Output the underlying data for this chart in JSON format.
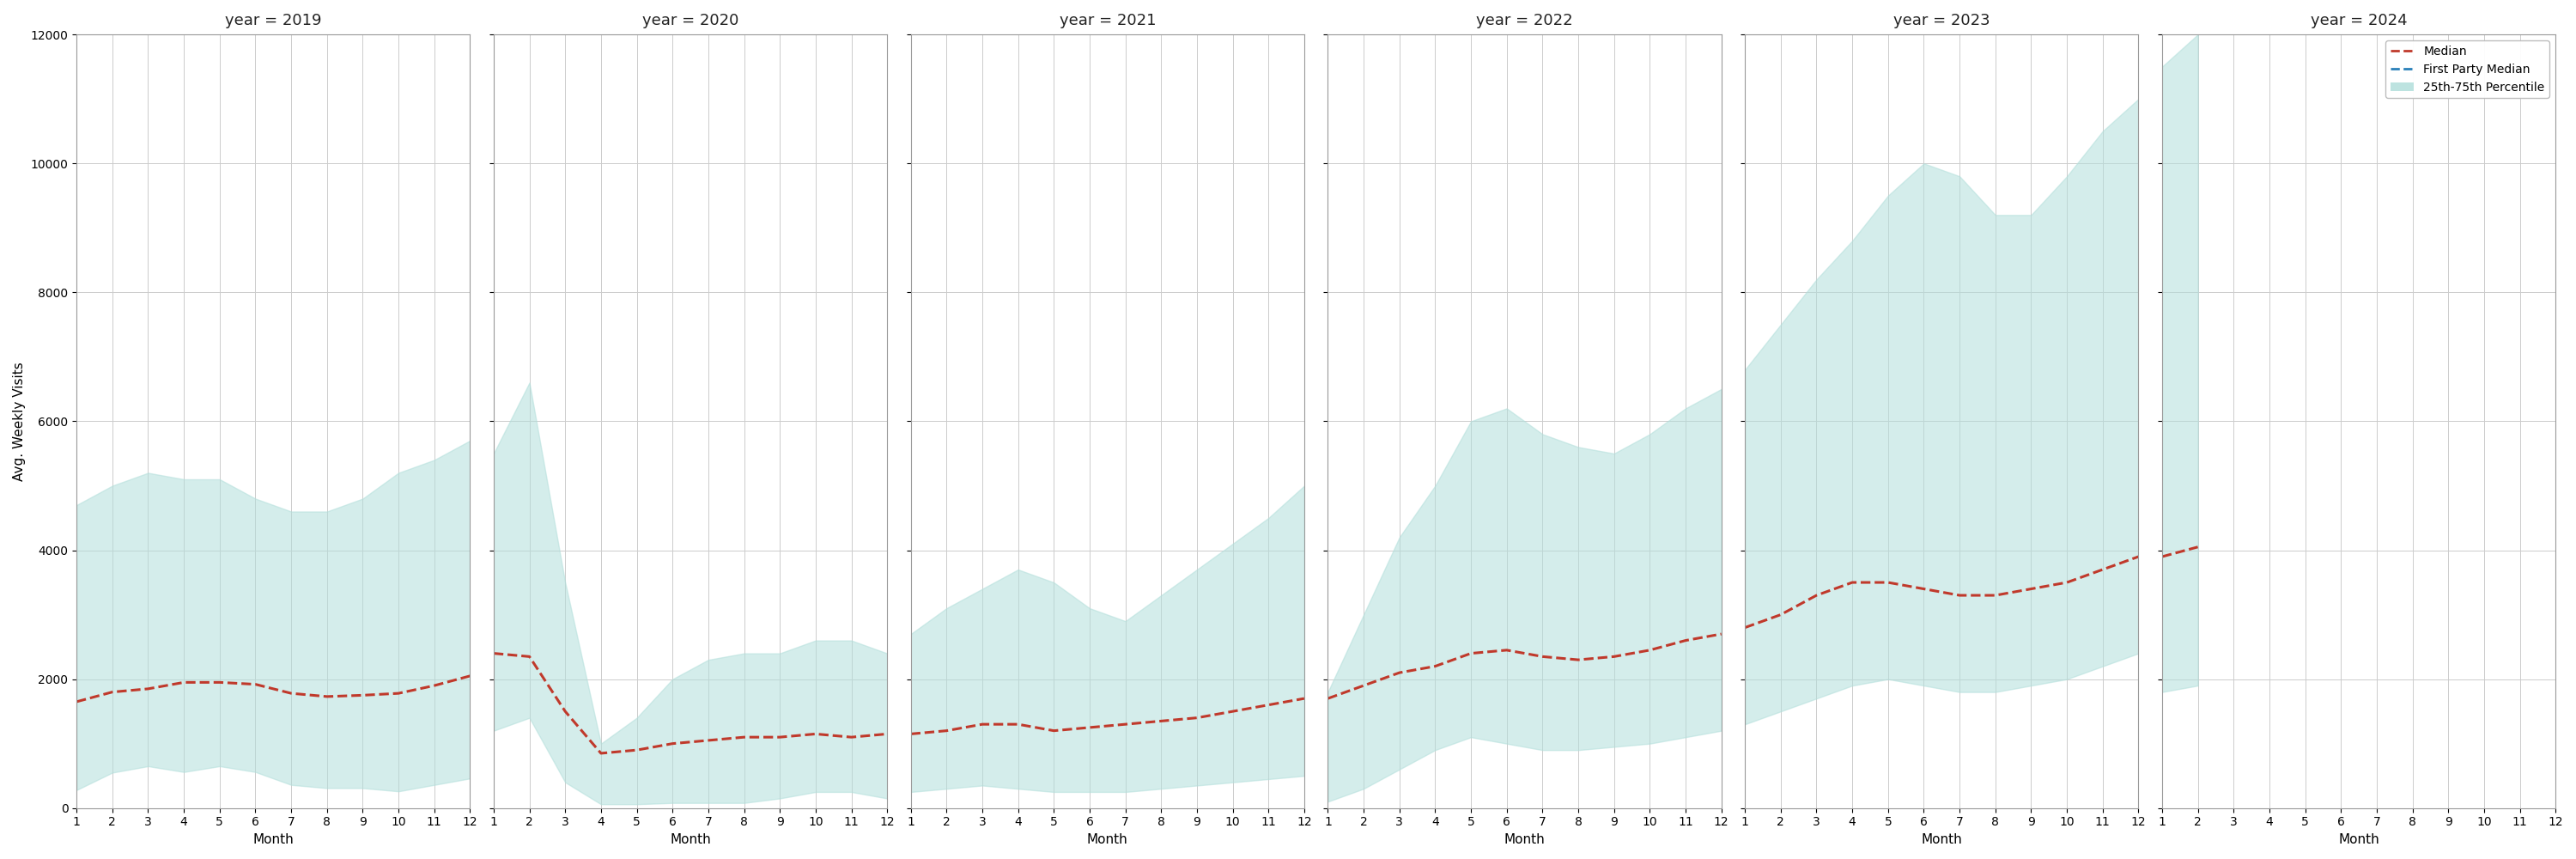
{
  "years": [
    2019,
    2020,
    2021,
    2022,
    2023,
    2024
  ],
  "months": [
    1,
    2,
    3,
    4,
    5,
    6,
    7,
    8,
    9,
    10,
    11,
    12
  ],
  "ylim": [
    0,
    12000
  ],
  "ylabel": "Avg. Weekly Visits",
  "xlabel": "Month",
  "fill_color": "#b2dfdb",
  "fill_alpha": 0.55,
  "median_color": "#c0392b",
  "fp_median_color": "#2980b9",
  "background_color": "#ffffff",
  "grid_color": "#cccccc",
  "title_fontsize": 13,
  "axis_fontsize": 11,
  "tick_fontsize": 10,
  "data": {
    "2019": {
      "median": [
        1650,
        1800,
        1850,
        1950,
        1950,
        1920,
        1780,
        1730,
        1750,
        1780,
        1900,
        2050
      ],
      "p25": [
        280,
        550,
        650,
        560,
        650,
        560,
        360,
        310,
        310,
        260,
        360,
        460
      ],
      "p75": [
        4700,
        5000,
        5200,
        5100,
        5100,
        4800,
        4600,
        4600,
        4800,
        5200,
        5400,
        5700
      ]
    },
    "2020": {
      "median": [
        2400,
        2350,
        1500,
        850,
        900,
        1000,
        1050,
        1100,
        1100,
        1150,
        1100,
        1150
      ],
      "p25": [
        1200,
        1400,
        400,
        60,
        60,
        80,
        80,
        80,
        150,
        250,
        250,
        150
      ],
      "p75": [
        5500,
        6600,
        3500,
        1000,
        1400,
        2000,
        2300,
        2400,
        2400,
        2600,
        2600,
        2400
      ]
    },
    "2021": {
      "median": [
        1150,
        1200,
        1300,
        1300,
        1200,
        1250,
        1300,
        1350,
        1400,
        1500,
        1600,
        1700
      ],
      "p25": [
        250,
        300,
        350,
        300,
        250,
        250,
        250,
        300,
        350,
        400,
        450,
        500
      ],
      "p75": [
        2700,
        3100,
        3400,
        3700,
        3500,
        3100,
        2900,
        3300,
        3700,
        4100,
        4500,
        5000
      ]
    },
    "2022": {
      "median": [
        1700,
        1900,
        2100,
        2200,
        2400,
        2450,
        2350,
        2300,
        2350,
        2450,
        2600,
        2700
      ],
      "p25": [
        100,
        300,
        600,
        900,
        1100,
        1000,
        900,
        900,
        950,
        1000,
        1100,
        1200
      ],
      "p75": [
        1800,
        3000,
        4200,
        5000,
        6000,
        6200,
        5800,
        5600,
        5500,
        5800,
        6200,
        6500
      ]
    },
    "2023": {
      "median": [
        2800,
        3000,
        3300,
        3500,
        3500,
        3400,
        3300,
        3300,
        3400,
        3500,
        3700,
        3900
      ],
      "p25": [
        1300,
        1500,
        1700,
        1900,
        2000,
        1900,
        1800,
        1800,
        1900,
        2000,
        2200,
        2400
      ],
      "p75": [
        6800,
        7500,
        8200,
        8800,
        9500,
        10000,
        9800,
        9200,
        9200,
        9800,
        10500,
        11000
      ]
    },
    "2024": {
      "median": [
        3900,
        4050,
        null,
        null,
        null,
        null,
        null,
        null,
        null,
        null,
        null,
        null
      ],
      "p25": [
        1800,
        1900,
        null,
        null,
        null,
        null,
        null,
        null,
        null,
        null,
        null,
        null
      ],
      "p75": [
        11500,
        12000,
        null,
        null,
        null,
        null,
        null,
        null,
        null,
        null,
        null,
        null
      ]
    }
  },
  "legend_labels": [
    "Median",
    "First Party Median",
    "25th-75th Percentile"
  ]
}
